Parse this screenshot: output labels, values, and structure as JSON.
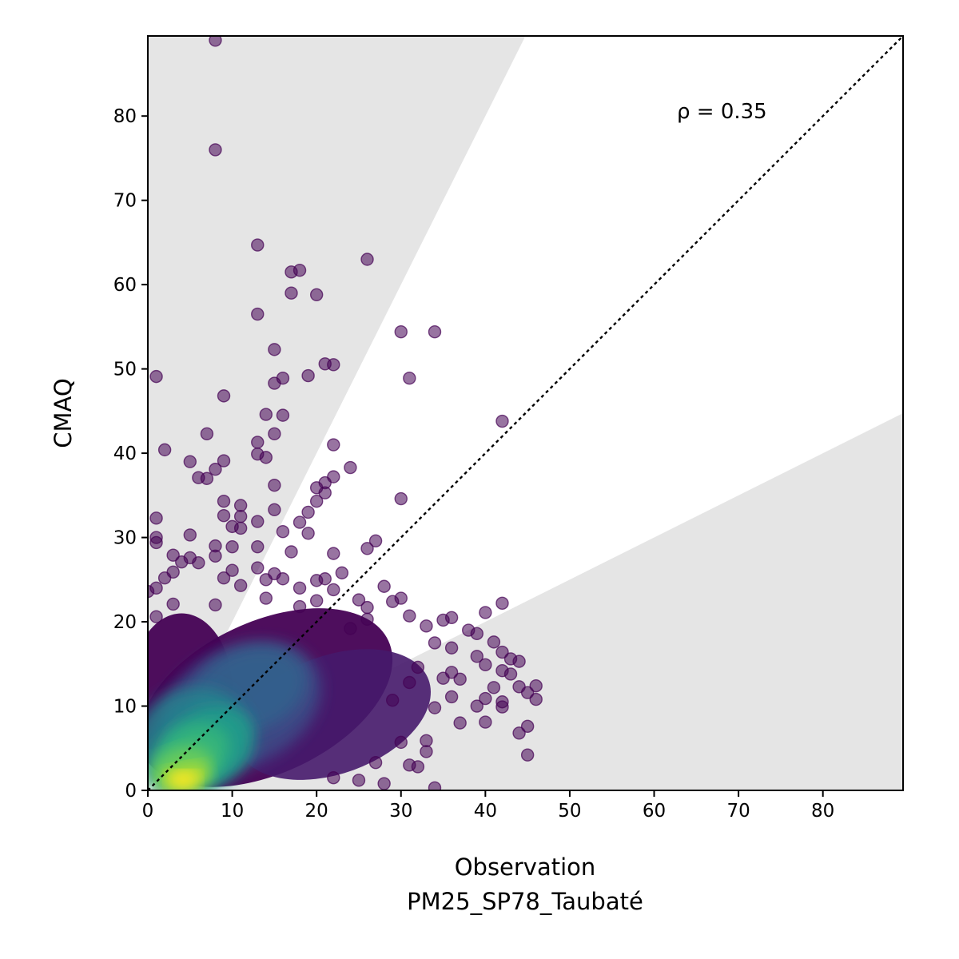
{
  "chart_data": {
    "type": "scatter",
    "title": "",
    "xlabel": "Observation",
    "xlabel_sub": "PM25_SP78_Taubaté",
    "ylabel": "CMAQ",
    "xlim": [
      0,
      89.5
    ],
    "ylim": [
      0,
      89.5
    ],
    "xticks": [
      0,
      10,
      20,
      30,
      40,
      50,
      60,
      70,
      80
    ],
    "yticks": [
      0,
      10,
      20,
      30,
      40,
      50,
      60,
      70,
      80
    ],
    "annotation": "ρ = 0.35",
    "grid": false,
    "colormap": "viridis",
    "colors": {
      "shade": "#e5e5e5",
      "outlier": "#440154",
      "reference_line": "#000000"
    },
    "reference_line": {
      "slope": 1,
      "style": "dotted"
    },
    "shaded_bands": [
      {
        "region": "above",
        "slope": 2.0
      },
      {
        "region": "below",
        "slope": 0.5
      }
    ],
    "points": [
      [
        8,
        89
      ],
      [
        8,
        76
      ],
      [
        13,
        64.7
      ],
      [
        26,
        63
      ],
      [
        17,
        61.5
      ],
      [
        18,
        61.7
      ],
      [
        17,
        59
      ],
      [
        20,
        58.8
      ],
      [
        13,
        56.5
      ],
      [
        30,
        54.4
      ],
      [
        34,
        54.4
      ],
      [
        15,
        52.3
      ],
      [
        21,
        50.6
      ],
      [
        22,
        50.5
      ],
      [
        1,
        49.1
      ],
      [
        19,
        49.2
      ],
      [
        31,
        48.9
      ],
      [
        16,
        48.9
      ],
      [
        15,
        48.3
      ],
      [
        9,
        46.8
      ],
      [
        14,
        44.6
      ],
      [
        16,
        44.5
      ],
      [
        42,
        43.8
      ],
      [
        15,
        42.3
      ],
      [
        7,
        42.3
      ],
      [
        13,
        41.3
      ],
      [
        22,
        41
      ],
      [
        2,
        40.4
      ],
      [
        13,
        39.9
      ],
      [
        14,
        39.5
      ],
      [
        5,
        39
      ],
      [
        9,
        39.1
      ],
      [
        24,
        38.3
      ],
      [
        8,
        38.1
      ],
      [
        6,
        37.1
      ],
      [
        7,
        37
      ],
      [
        22,
        37.2
      ],
      [
        21,
        36.5
      ],
      [
        15,
        36.2
      ],
      [
        20,
        35.9
      ],
      [
        21,
        35.3
      ],
      [
        9,
        34.3
      ],
      [
        20,
        34.3
      ],
      [
        30,
        34.6
      ],
      [
        11,
        33.8
      ],
      [
        15,
        33.3
      ],
      [
        19,
        33
      ],
      [
        11,
        32.5
      ],
      [
        1,
        32.3
      ],
      [
        9,
        32.6
      ],
      [
        13,
        31.9
      ],
      [
        18,
        31.8
      ],
      [
        10,
        31.3
      ],
      [
        11,
        31.1
      ],
      [
        16,
        30.7
      ],
      [
        19,
        30.5
      ],
      [
        5,
        30.3
      ],
      [
        1,
        30
      ],
      [
        1,
        29.4
      ],
      [
        27,
        29.6
      ],
      [
        8,
        29
      ],
      [
        10,
        28.9
      ],
      [
        13,
        28.9
      ],
      [
        26,
        28.7
      ],
      [
        17,
        28.3
      ],
      [
        22,
        28.1
      ],
      [
        3,
        27.9
      ],
      [
        8,
        27.8
      ],
      [
        5,
        27.6
      ],
      [
        4,
        27.1
      ],
      [
        6,
        27
      ],
      [
        13,
        26.4
      ],
      [
        10,
        26.1
      ],
      [
        3,
        25.9
      ],
      [
        15,
        25.7
      ],
      [
        23,
        25.8
      ],
      [
        2,
        25.2
      ],
      [
        9,
        25.2
      ],
      [
        14,
        25
      ],
      [
        16,
        25.1
      ],
      [
        21,
        25.1
      ],
      [
        1,
        24
      ],
      [
        11,
        24.3
      ],
      [
        18,
        24
      ],
      [
        28,
        24.2
      ],
      [
        0,
        23.6
      ],
      [
        22,
        23.8
      ],
      [
        14,
        22.8
      ],
      [
        20,
        22.5
      ],
      [
        29,
        22.4
      ],
      [
        42,
        22.2
      ],
      [
        30,
        22.8
      ],
      [
        3,
        22.1
      ],
      [
        8,
        22
      ],
      [
        26,
        21.7
      ],
      [
        31,
        20.7
      ],
      [
        35,
        20.2
      ],
      [
        40,
        21.1
      ],
      [
        36,
        20.5
      ],
      [
        1,
        20.6
      ],
      [
        33,
        19.5
      ],
      [
        38,
        19
      ],
      [
        39,
        18.6
      ],
      [
        41,
        17.6
      ],
      [
        34,
        17.5
      ],
      [
        36,
        16.9
      ],
      [
        42,
        16.4
      ],
      [
        43,
        15.6
      ],
      [
        44,
        15.3
      ],
      [
        39,
        15.9
      ],
      [
        40,
        14.9
      ],
      [
        42,
        14.2
      ],
      [
        43,
        13.8
      ],
      [
        35,
        13.3
      ],
      [
        37,
        13.2
      ],
      [
        44,
        12.3
      ],
      [
        46,
        12.4
      ],
      [
        45,
        11.6
      ],
      [
        46,
        10.8
      ],
      [
        40,
        10.9
      ],
      [
        42,
        10.5
      ],
      [
        42,
        9.9
      ],
      [
        40,
        8.1
      ],
      [
        44,
        6.8
      ],
      [
        45,
        7.6
      ],
      [
        33,
        5.9
      ],
      [
        33,
        4.6
      ],
      [
        45,
        4.2
      ],
      [
        27,
        3.3
      ],
      [
        32,
        2.8
      ],
      [
        31,
        3
      ],
      [
        34,
        0.3
      ],
      [
        28,
        0.8
      ],
      [
        25,
        1.2
      ],
      [
        22,
        1.5
      ],
      [
        30,
        5.7
      ],
      [
        36,
        11.1
      ],
      [
        37,
        8
      ],
      [
        39,
        10
      ],
      [
        41,
        12.2
      ],
      [
        31,
        12.8
      ],
      [
        29,
        10.7
      ],
      [
        32,
        14.6
      ],
      [
        36,
        14
      ],
      [
        34,
        9.8
      ],
      [
        26,
        20.3
      ],
      [
        24,
        19.2
      ],
      [
        25,
        22.6
      ],
      [
        18,
        21.8
      ],
      [
        20,
        24.9
      ]
    ]
  }
}
